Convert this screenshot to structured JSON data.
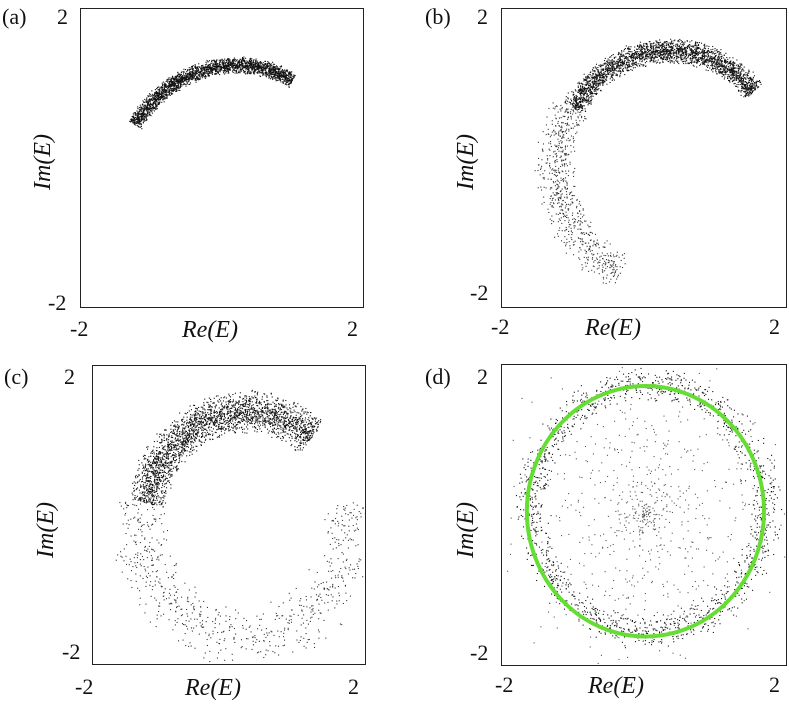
{
  "chart_data": [
    {
      "type": "scatter",
      "panel_label": "(a)",
      "xlabel": "Re(E)",
      "ylabel": "Im(E)",
      "xlim": [
        -2,
        2
      ],
      "ylim": [
        -2,
        2
      ],
      "x_ticks": [
        "-2",
        "2"
      ],
      "y_ticks": [
        "2",
        "-2"
      ],
      "grid": false,
      "series": [
        {
          "type": "band",
          "color": "#111111",
          "density": "dense",
          "center_x": 0.2,
          "center_y": -0.45,
          "radius": 1.7,
          "theta_range_deg": [
            62,
            148
          ],
          "width": 0.12
        }
      ]
    },
    {
      "type": "scatter",
      "panel_label": "(b)",
      "xlabel": "Re(E)",
      "ylabel": "Im(E)",
      "xlim": [
        -2,
        2
      ],
      "ylim": [
        -2,
        2
      ],
      "x_ticks": [
        "-2",
        "2"
      ],
      "y_ticks": [
        "2",
        "-2"
      ],
      "grid": false,
      "series": [
        {
          "type": "band",
          "color": "#111111",
          "density": "dense",
          "center_x": 0.35,
          "center_y": -0.1,
          "radius": 1.55,
          "theta_range_deg": [
            40,
            150
          ],
          "width": 0.18
        },
        {
          "type": "band",
          "color": "#333333",
          "density": "sparse",
          "center_x": 0.35,
          "center_y": -0.1,
          "radius": 1.6,
          "theta_range_deg": [
            150,
            245
          ],
          "width": 0.3
        }
      ]
    },
    {
      "type": "scatter",
      "panel_label": "(c)",
      "xlabel": "Re(E)",
      "ylabel": "Im(E)",
      "xlim": [
        -2,
        2
      ],
      "ylim": [
        -2,
        2
      ],
      "x_ticks": [
        "-2",
        "2"
      ],
      "y_ticks": [
        "2",
        "-2"
      ],
      "grid": false,
      "series": [
        {
          "type": "band",
          "color": "#111111",
          "density": "dense",
          "center_x": 0.25,
          "center_y": -0.1,
          "radius": 1.5,
          "theta_range_deg": [
            50,
            170
          ],
          "width": 0.3
        },
        {
          "type": "band",
          "color": "#333333",
          "density": "sparse",
          "center_x": 0.25,
          "center_y": -0.1,
          "radius": 1.55,
          "theta_range_deg": [
            170,
            370
          ],
          "width": 0.45
        }
      ]
    },
    {
      "type": "scatter",
      "panel_label": "(d)",
      "xlabel": "Re(E)",
      "ylabel": "Im(E)",
      "xlim": [
        -2,
        2
      ],
      "ylim": [
        -2,
        2
      ],
      "x_ticks": [
        "-2",
        "2"
      ],
      "y_ticks": [
        "2",
        "-2"
      ],
      "grid": false,
      "series": [
        {
          "type": "band",
          "color": "#111111",
          "density": "medium",
          "center_x": 0.05,
          "center_y": 0.1,
          "radius": 1.65,
          "theta_range_deg": [
            0,
            360
          ],
          "width": 0.25
        },
        {
          "type": "band",
          "color": "#555555",
          "density": "sparse",
          "center_x": 0.0,
          "center_y": 0.0,
          "radius": 0.9,
          "theta_range_deg": [
            0,
            360
          ],
          "width": 1.6
        },
        {
          "type": "circle",
          "color": "#66dd33",
          "center_x": 0.02,
          "center_y": 0.05,
          "radius": 1.67
        }
      ]
    }
  ]
}
